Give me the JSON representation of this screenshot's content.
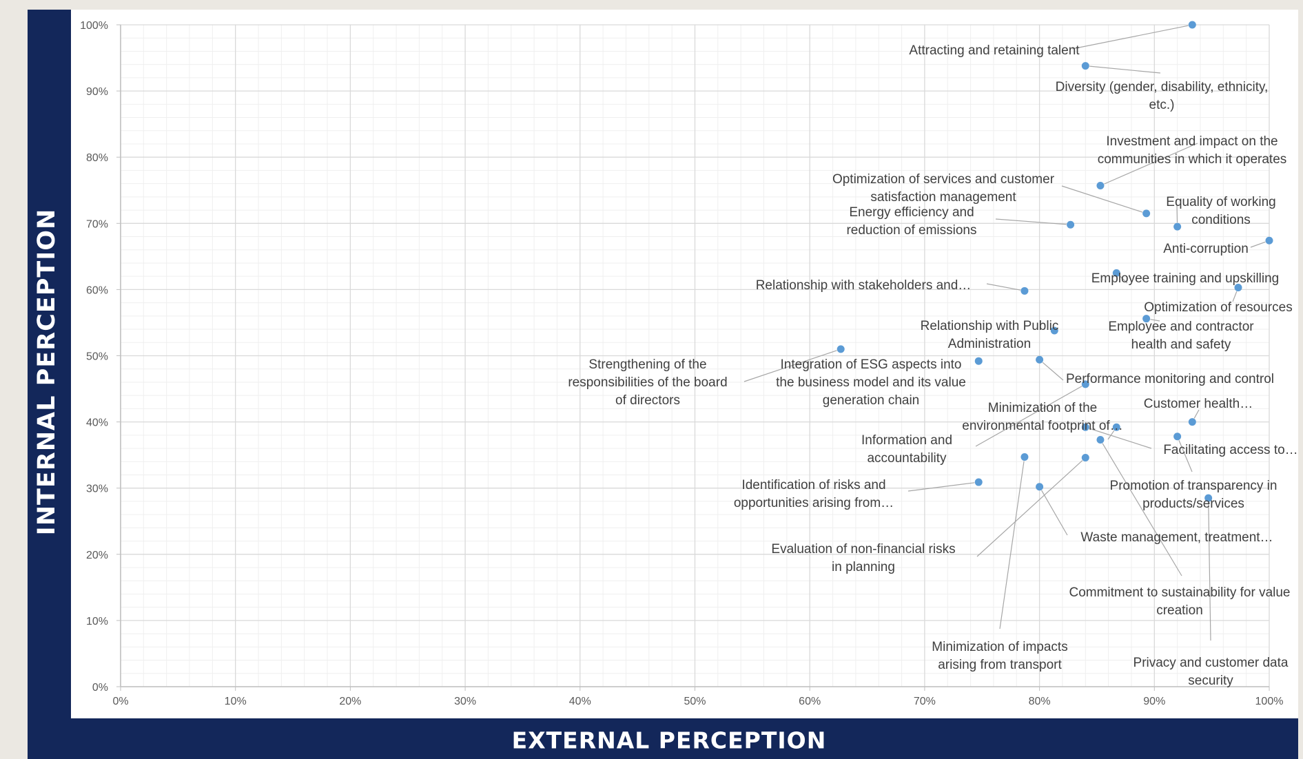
{
  "chart_data": {
    "type": "scatter",
    "xlabel": "EXTERNAL PERCEPTION",
    "ylabel": "INTERNAL PERCEPTION",
    "xlim": [
      0,
      100
    ],
    "ylim": [
      0,
      100
    ],
    "x_ticks": [
      "0%",
      "10%",
      "20%",
      "30%",
      "40%",
      "50%",
      "60%",
      "70%",
      "80%",
      "90%",
      "100%"
    ],
    "y_ticks": [
      "0%",
      "10%",
      "20%",
      "30%",
      "40%",
      "50%",
      "60%",
      "70%",
      "80%",
      "90%",
      "100%"
    ],
    "grid": true,
    "marker_color": "#5b9bd5",
    "points": [
      {
        "label": [
          "Attracting and retaining talent"
        ],
        "x": 93.3,
        "y": 100.0
      },
      {
        "label": [
          "Diversity (gender, disability, ethnicity,",
          "etc.)"
        ],
        "x": 84.0,
        "y": 93.8
      },
      {
        "label": [
          "Investment and impact on the",
          "communities in which it operates"
        ],
        "x": 85.3,
        "y": 75.7
      },
      {
        "label": [
          "Optimization of services and customer",
          "satisfaction management"
        ],
        "x": 89.3,
        "y": 71.5
      },
      {
        "label": [
          "Equality of working",
          "conditions"
        ],
        "x": 92.0,
        "y": 69.5
      },
      {
        "label": [
          "Energy efficiency and",
          "reduction of emissions"
        ],
        "x": 82.7,
        "y": 69.8
      },
      {
        "label": [
          "Anti-corruption"
        ],
        "x": 100.0,
        "y": 67.4
      },
      {
        "label": [
          "Employee training and upskilling"
        ],
        "x": 86.7,
        "y": 62.5
      },
      {
        "label": [
          "Relationship with stakeholders and…"
        ],
        "x": 78.7,
        "y": 59.8
      },
      {
        "label": [
          "Optimization of resources"
        ],
        "x": 97.3,
        "y": 60.3
      },
      {
        "label": [
          "Employee and contractor",
          "health and safety"
        ],
        "x": 89.3,
        "y": 55.6
      },
      {
        "label": [
          "Relationship with Public",
          "Administration"
        ],
        "x": 81.3,
        "y": 53.8
      },
      {
        "label": [
          "Strengthening of the",
          "responsibilities of the board",
          "of directors"
        ],
        "x": 62.7,
        "y": 51.0
      },
      {
        "label": [
          "Integration of ESG aspects into",
          "the business model and its value",
          "generation chain"
        ],
        "x": 74.7,
        "y": 49.2
      },
      {
        "label": [
          "Performance monitoring and control"
        ],
        "x": 80.0,
        "y": 49.4
      },
      {
        "label": [
          "Information and",
          "accountability"
        ],
        "x": 84.0,
        "y": 45.7
      },
      {
        "label": [
          "Customer health…"
        ],
        "x": 93.3,
        "y": 40.0
      },
      {
        "label": [
          "Minimization of the",
          "environmental footprint of…"
        ],
        "x": 86.7,
        "y": 39.2
      },
      {
        "label": [
          "Facilitating access to…"
        ],
        "x": 84.0,
        "y": 39.2
      },
      {
        "label": [
          "Promotion of transparency in",
          "products/services"
        ],
        "x": 92.0,
        "y": 37.8
      },
      {
        "label": [
          "Commitment to sustainability for value",
          "creation"
        ],
        "x": 85.3,
        "y": 37.3
      },
      {
        "label": [
          "Evaluation of non-financial risks",
          "in planning"
        ],
        "x": 84.0,
        "y": 34.6
      },
      {
        "label": [
          "Minimization of impacts",
          "arising from transport"
        ],
        "x": 78.7,
        "y": 34.7
      },
      {
        "label": [
          "Identification of risks and",
          "opportunities arising from…"
        ],
        "x": 74.7,
        "y": 30.9
      },
      {
        "label": [
          "Waste management, treatment…"
        ],
        "x": 80.0,
        "y": 30.2
      },
      {
        "label": [
          "Privacy and customer data",
          "security"
        ],
        "x": 94.7,
        "y": 28.5
      }
    ]
  }
}
